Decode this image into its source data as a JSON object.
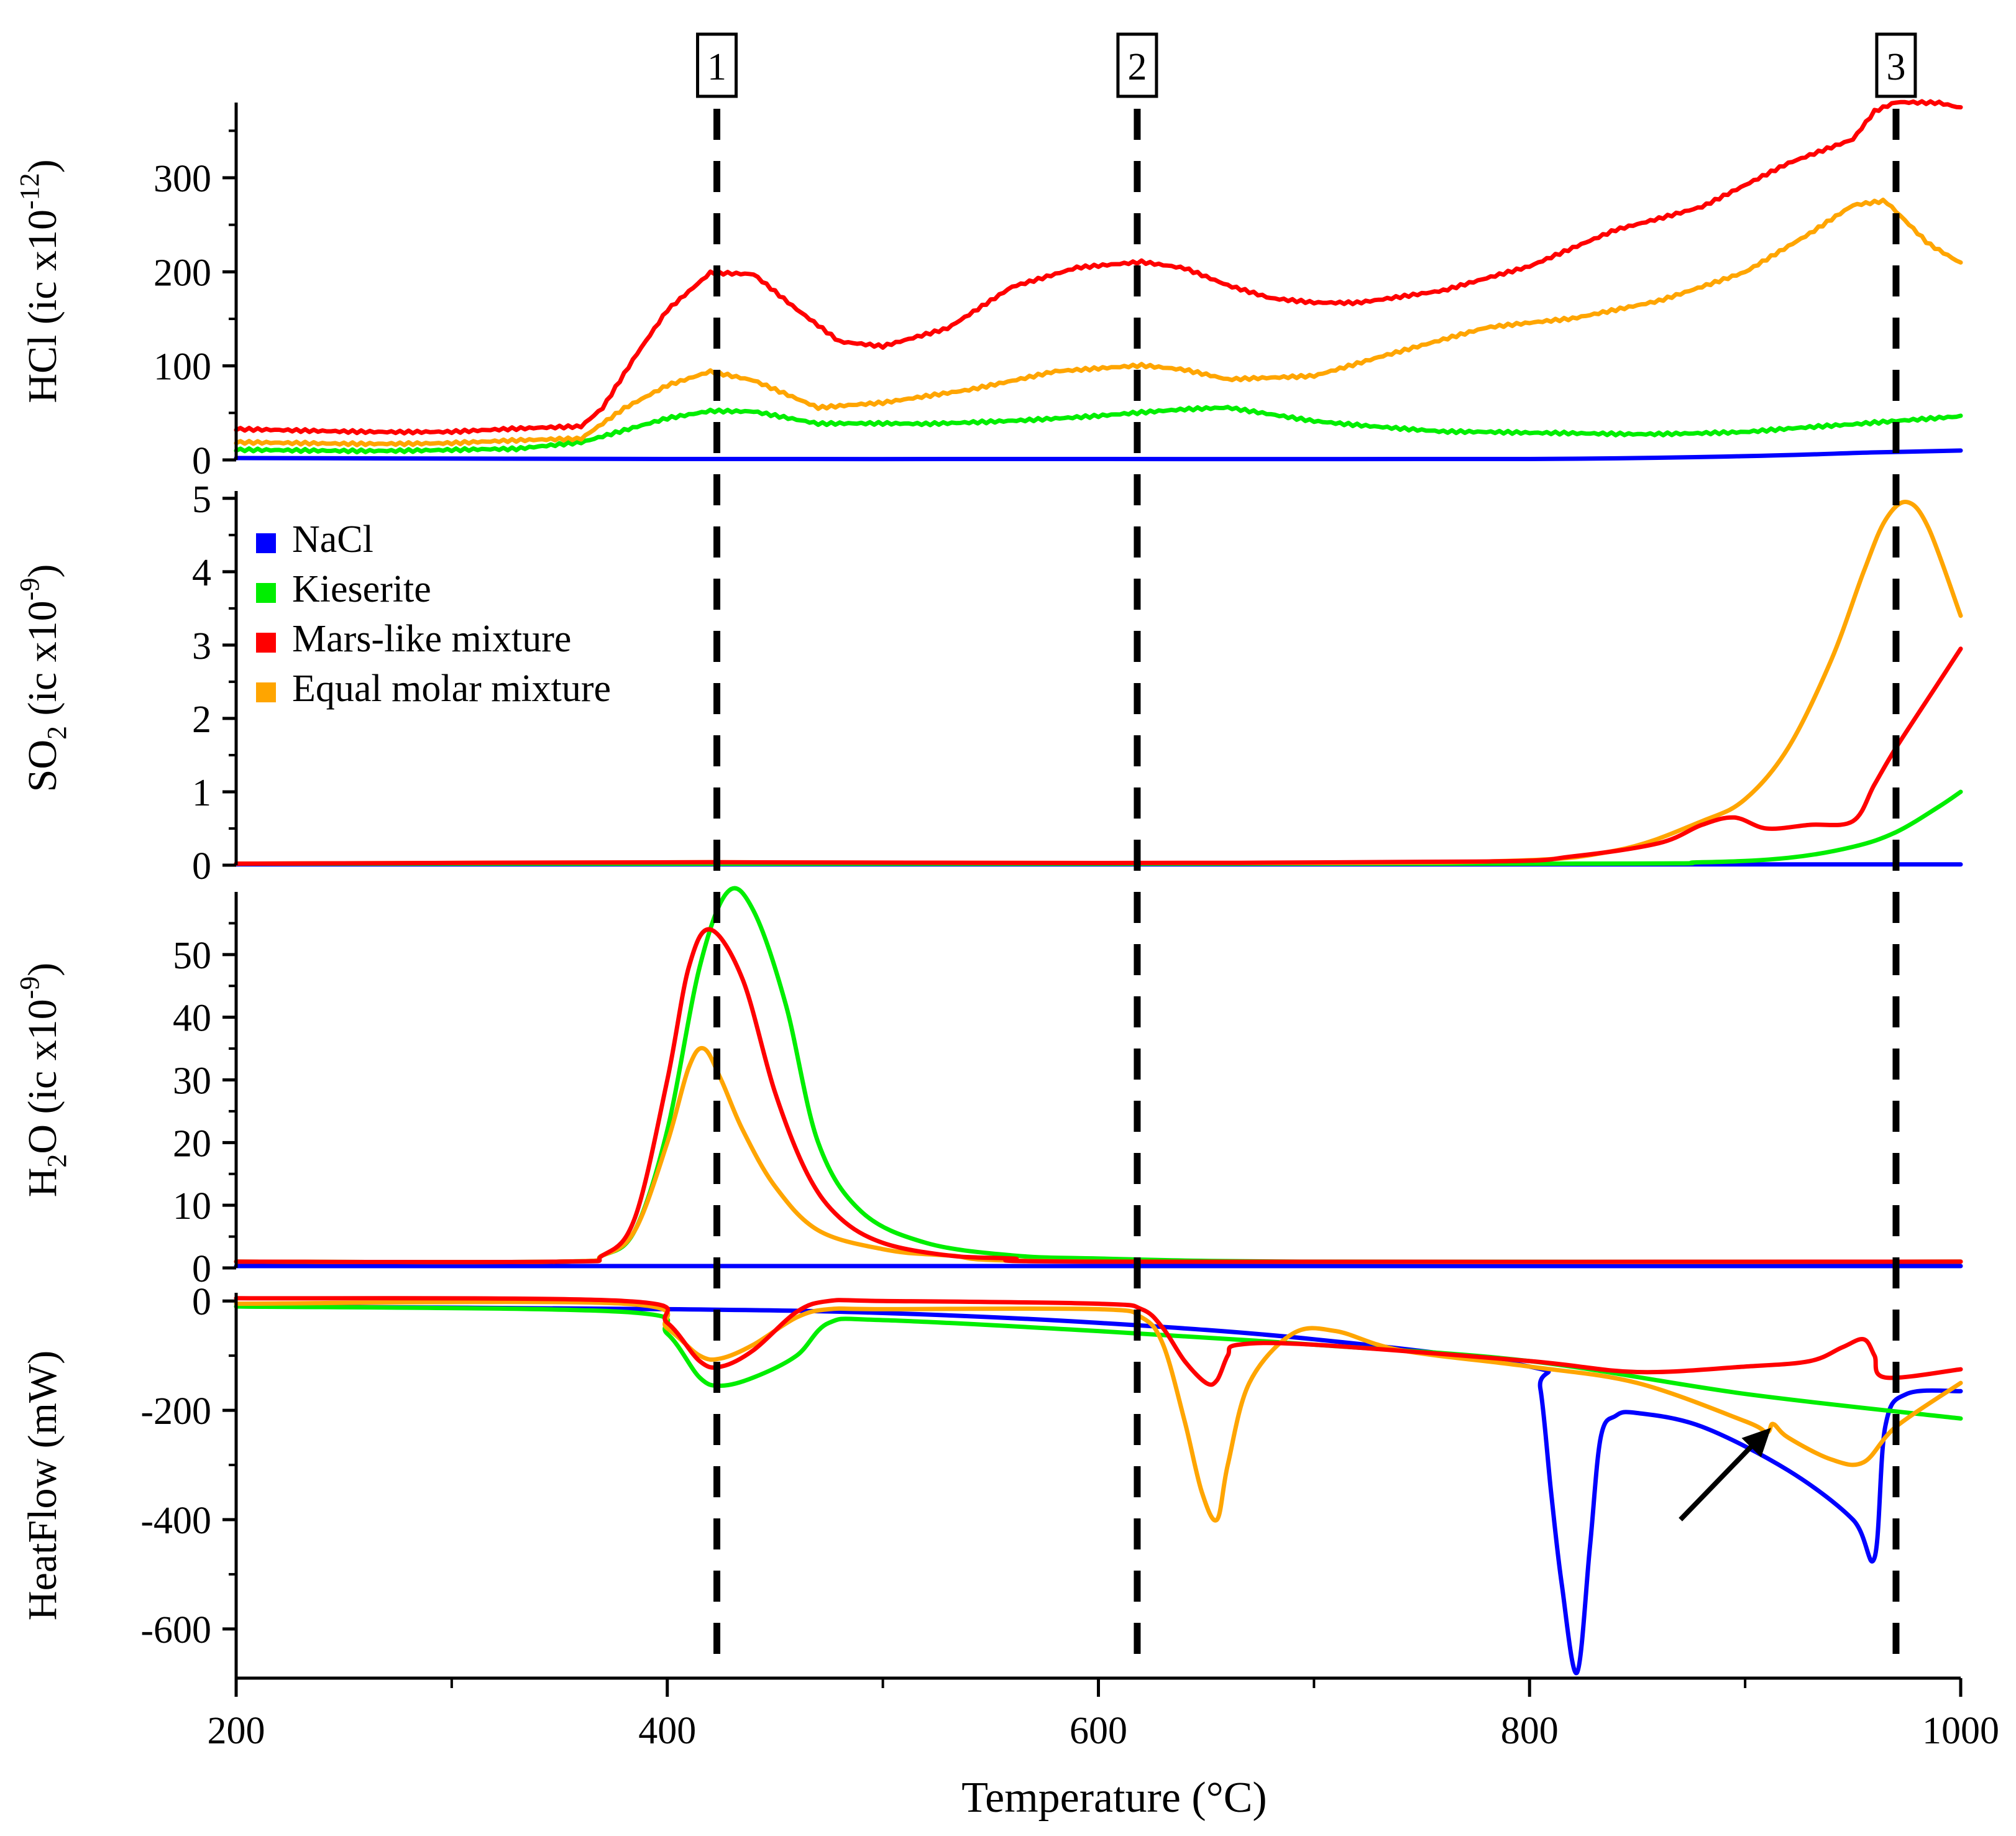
{
  "colors": {
    "NaCl": "#0000ff",
    "Kieserite": "#00ee00",
    "Mars-like mixture": "#ff0000",
    "Equal molar mixture": "#ffa500"
  },
  "xaxis": {
    "label": "Temperature (°C)",
    "range": [
      200,
      1000
    ],
    "ticks": [
      200,
      400,
      600,
      800,
      1000
    ],
    "tick_labels": [
      "200",
      "400",
      "600",
      "800",
      "1000"
    ]
  },
  "markers": [
    {
      "label": "1",
      "x": 423
    },
    {
      "label": "2",
      "x": 618
    },
    {
      "label": "3",
      "x": 970
    }
  ],
  "legend": {
    "placement": "upper-left of SO2 panel",
    "entries": [
      "NaCl",
      "Kieserite",
      "Mars-like mixture",
      "Equal molar mixture"
    ]
  },
  "arrow": {
    "from": [
      870,
      -400
    ],
    "to": [
      912,
      -232
    ]
  },
  "chart_data": [
    {
      "type": "line",
      "panel": "HCl",
      "ylabel_base": "HCl (ic x10",
      "ylabel_exp": "-12",
      "ylabel_end": ")",
      "ylim": [
        0,
        380
      ],
      "yticks": [
        0,
        100,
        200,
        300
      ],
      "series": [
        {
          "name": "NaCl",
          "x": [
            200,
            400,
            600,
            800,
            900,
            960,
            1000
          ],
          "y": [
            2,
            1,
            1,
            1,
            4,
            8,
            10
          ]
        },
        {
          "name": "Kieserite",
          "x": [
            200,
            330,
            360,
            385,
            400,
            420,
            440,
            470,
            520,
            600,
            640,
            660,
            700,
            760,
            800,
            850,
            900,
            950,
            1000
          ],
          "y": [
            10,
            11,
            18,
            35,
            45,
            53,
            52,
            38,
            38,
            47,
            53,
            55,
            42,
            30,
            28,
            28,
            30,
            37,
            47
          ]
        },
        {
          "name": "Mars-like mixture",
          "x": [
            200,
            300,
            360,
            370,
            385,
            400,
            420,
            440,
            460,
            480,
            500,
            530,
            560,
            590,
            620,
            640,
            660,
            680,
            700,
            720,
            760,
            800,
            840,
            880,
            920,
            950,
            960,
            970,
            990,
            1000
          ],
          "y": [
            32,
            30,
            35,
            55,
            110,
            160,
            200,
            198,
            160,
            125,
            120,
            140,
            185,
            205,
            210,
            203,
            185,
            172,
            168,
            168,
            180,
            205,
            245,
            270,
            315,
            340,
            370,
            380,
            380,
            375
          ]
        },
        {
          "name": "Equal molar mixture",
          "x": [
            200,
            300,
            360,
            380,
            400,
            420,
            440,
            470,
            500,
            540,
            580,
            620,
            640,
            660,
            700,
            730,
            780,
            820,
            860,
            900,
            930,
            950,
            965,
            985,
            1000
          ],
          "y": [
            18,
            18,
            22,
            55,
            80,
            95,
            85,
            55,
            60,
            75,
            95,
            100,
            95,
            85,
            90,
            110,
            140,
            150,
            170,
            200,
            240,
            270,
            275,
            230,
            210
          ]
        }
      ]
    },
    {
      "type": "line",
      "panel": "SO2",
      "ylabel_base": "SO",
      "ylabel_sub": "2",
      "ylabel_mid": " (ic x10",
      "ylabel_exp": "-9",
      "ylabel_end": ")",
      "ylim": [
        0,
        5.1
      ],
      "yticks": [
        0,
        1,
        2,
        3,
        4,
        5
      ],
      "series": [
        {
          "name": "NaCl",
          "x": [
            200,
            1000
          ],
          "y": [
            0.01,
            0.01
          ]
        },
        {
          "name": "Kieserite",
          "x": [
            200,
            800,
            880,
            920,
            950,
            970,
            990,
            1000
          ],
          "y": [
            0.02,
            0.02,
            0.04,
            0.1,
            0.25,
            0.45,
            0.8,
            1.0
          ]
        },
        {
          "name": "Mars-like mixture",
          "x": [
            200,
            420,
            600,
            780,
            820,
            860,
            880,
            895,
            910,
            930,
            950,
            960,
            970,
            990,
            1000
          ],
          "y": [
            0.02,
            0.04,
            0.03,
            0.05,
            0.12,
            0.3,
            0.55,
            0.65,
            0.5,
            0.55,
            0.6,
            1.1,
            1.6,
            2.5,
            2.95
          ]
        },
        {
          "name": "Equal molar mixture",
          "x": [
            200,
            420,
            600,
            780,
            840,
            880,
            900,
            920,
            940,
            955,
            965,
            975,
            985,
            1000
          ],
          "y": [
            0.02,
            0.04,
            0.03,
            0.05,
            0.2,
            0.6,
            0.9,
            1.6,
            2.8,
            4.0,
            4.7,
            4.95,
            4.6,
            3.4
          ]
        }
      ]
    },
    {
      "type": "line",
      "panel": "H2O",
      "ylabel_base": "H",
      "ylabel_sub": "2",
      "ylabel_mid": "O (ic x10",
      "ylabel_exp": "-9",
      "ylabel_end": ")",
      "ylim": [
        0,
        60
      ],
      "yticks": [
        0,
        10,
        20,
        30,
        40,
        50
      ],
      "series": [
        {
          "name": "NaCl",
          "x": [
            200,
            1000
          ],
          "y": [
            0.3,
            0.3
          ]
        },
        {
          "name": "Kieserite",
          "x": [
            200,
            350,
            370,
            385,
            400,
            415,
            428,
            440,
            455,
            470,
            490,
            520,
            560,
            600,
            700,
            1000
          ],
          "y": [
            1,
            1,
            2,
            6,
            22,
            48,
            60,
            57,
            42,
            20,
            9,
            4,
            2,
            1.5,
            1,
            1
          ]
        },
        {
          "name": "Mars-like mixture",
          "x": [
            200,
            350,
            370,
            385,
            400,
            410,
            420,
            435,
            450,
            465,
            480,
            500,
            530,
            560,
            600,
            1000
          ],
          "y": [
            1,
            1,
            2,
            8,
            30,
            48,
            54,
            46,
            28,
            15,
            8,
            4,
            2,
            1.5,
            1,
            1
          ]
        },
        {
          "name": "Equal molar mixture",
          "x": [
            200,
            350,
            370,
            385,
            400,
            410,
            417,
            425,
            435,
            450,
            470,
            500,
            530,
            600,
            1000
          ],
          "y": [
            1,
            1,
            2,
            6,
            20,
            32,
            35,
            30,
            22,
            13,
            6,
            3,
            2,
            1,
            1
          ]
        }
      ]
    },
    {
      "type": "line",
      "panel": "HeatFlow",
      "ylabel_base": "HeatFlow (mW)",
      "ylim": [
        -690,
        15
      ],
      "yticks": [
        0,
        -200,
        -400,
        -600
      ],
      "series": [
        {
          "name": "NaCl",
          "x": [
            200,
            400,
            500,
            600,
            700,
            800,
            805,
            810,
            815,
            822,
            828,
            833,
            840,
            850,
            880,
            920,
            950,
            960,
            965,
            975,
            1000
          ],
          "y": [
            -10,
            -15,
            -22,
            -40,
            -70,
            -120,
            -160,
            -350,
            -520,
            -680,
            -450,
            -250,
            -210,
            -205,
            -230,
            -310,
            -400,
            -470,
            -230,
            -170,
            -165
          ]
        },
        {
          "name": "Kieserite",
          "x": [
            200,
            380,
            400,
            415,
            425,
            440,
            460,
            475,
            500,
            600,
            700,
            800,
            900,
            1000
          ],
          "y": [
            -10,
            -20,
            -60,
            -140,
            -155,
            -140,
            -100,
            -40,
            -35,
            -55,
            -80,
            -110,
            -170,
            -215
          ]
        },
        {
          "name": "Mars-like mixture",
          "x": [
            200,
            380,
            400,
            415,
            425,
            440,
            460,
            475,
            500,
            600,
            620,
            630,
            640,
            650,
            655,
            660,
            665,
            700,
            800,
            850,
            900,
            930,
            945,
            955,
            960,
            965,
            1000
          ],
          "y": [
            5,
            0,
            -40,
            -110,
            -120,
            -90,
            -20,
            0,
            0,
            -5,
            -15,
            -50,
            -110,
            -150,
            -145,
            -100,
            -80,
            -80,
            -110,
            -130,
            -120,
            -110,
            -85,
            -70,
            -100,
            -140,
            -125
          ]
        },
        {
          "name": "Equal molar mixture",
          "x": [
            200,
            380,
            400,
            415,
            425,
            440,
            460,
            475,
            500,
            600,
            620,
            630,
            640,
            648,
            655,
            660,
            670,
            690,
            710,
            740,
            800,
            850,
            900,
            910,
            913,
            920,
            940,
            955,
            970,
            1000
          ],
          "y": [
            -5,
            -5,
            -50,
            -100,
            -105,
            -80,
            -30,
            -15,
            -15,
            -15,
            -30,
            -80,
            -220,
            -350,
            -400,
            -300,
            -150,
            -60,
            -55,
            -90,
            -120,
            -150,
            -220,
            -240,
            -225,
            -250,
            -290,
            -295,
            -230,
            -150
          ]
        }
      ]
    }
  ]
}
